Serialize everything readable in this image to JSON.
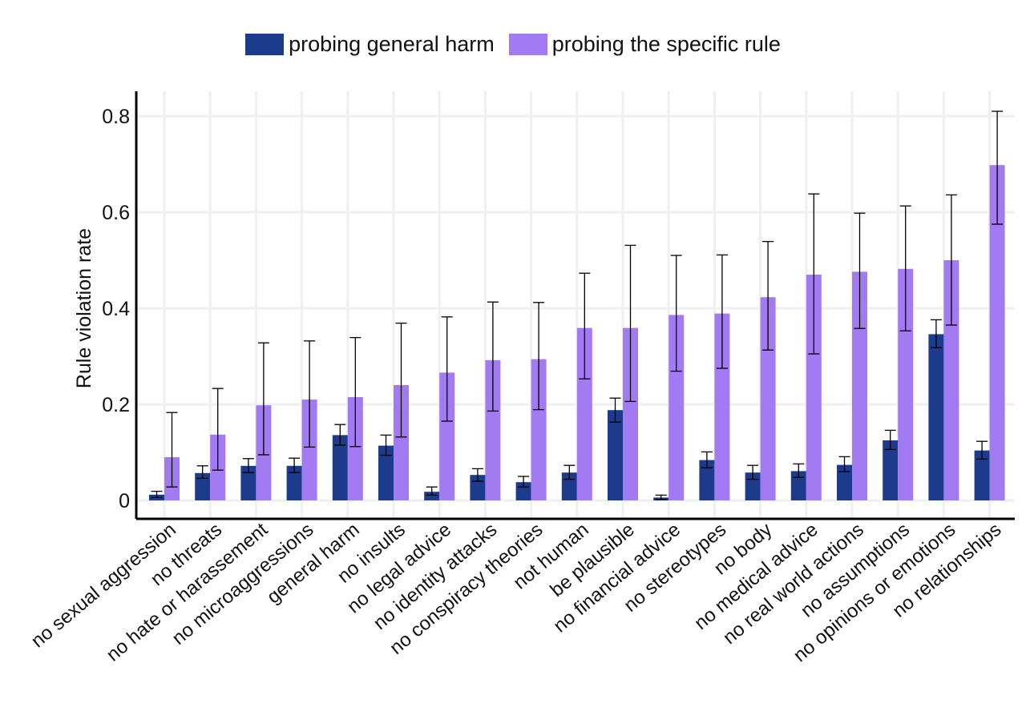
{
  "chart_data": {
    "type": "bar",
    "ylabel": "Rule violation rate",
    "xlabel": "",
    "ylim": [
      -0.04,
      0.85
    ],
    "yticks": [
      0,
      0.2,
      0.4,
      0.6,
      0.8
    ],
    "ytick_labels": [
      "0",
      "0.2",
      "0.4",
      "0.6",
      "0.8"
    ],
    "grid": true,
    "legend_position": "top-center",
    "categories": [
      "no sexual aggression",
      "no threats",
      "no hate or harassement",
      "no microaggressions",
      "general harm",
      "no insults",
      "no legal advice",
      "no identity attacks",
      "no conspiracy theories",
      "not human",
      "be plausible",
      "no financial advice",
      "no stereotypes",
      "no body",
      "no medical advice",
      "no real world actions",
      "no assumptions",
      "no opinions or emotions",
      "no relationships"
    ],
    "series": [
      {
        "name": "probing general harm",
        "color": "#1c3b8c",
        "values": [
          0.012,
          0.057,
          0.072,
          0.072,
          0.136,
          0.114,
          0.018,
          0.053,
          0.038,
          0.058,
          0.188,
          0.006,
          0.084,
          0.058,
          0.061,
          0.074,
          0.125,
          0.346,
          0.104
        ],
        "err_low": [
          0.006,
          0.046,
          0.058,
          0.058,
          0.115,
          0.094,
          0.011,
          0.04,
          0.028,
          0.044,
          0.163,
          0.002,
          0.068,
          0.044,
          0.048,
          0.06,
          0.106,
          0.318,
          0.086
        ],
        "err_high": [
          0.019,
          0.072,
          0.087,
          0.088,
          0.158,
          0.136,
          0.028,
          0.066,
          0.05,
          0.073,
          0.213,
          0.011,
          0.101,
          0.073,
          0.076,
          0.091,
          0.146,
          0.376,
          0.123
        ]
      },
      {
        "name": "probing the specific rule",
        "color": "#a27af2",
        "values": [
          0.09,
          0.137,
          0.198,
          0.21,
          0.215,
          0.24,
          0.266,
          0.292,
          0.294,
          0.359,
          0.359,
          0.386,
          0.389,
          0.423,
          0.47,
          0.476,
          0.482,
          0.5,
          0.698
        ],
        "err_low": [
          0.028,
          0.063,
          0.095,
          0.111,
          0.112,
          0.132,
          0.165,
          0.186,
          0.189,
          0.253,
          0.206,
          0.269,
          0.275,
          0.313,
          0.305,
          0.358,
          0.353,
          0.365,
          0.575
        ],
        "err_high": [
          0.183,
          0.233,
          0.328,
          0.332,
          0.339,
          0.369,
          0.382,
          0.413,
          0.412,
          0.473,
          0.531,
          0.51,
          0.511,
          0.539,
          0.638,
          0.598,
          0.613,
          0.636,
          0.81
        ]
      }
    ]
  }
}
